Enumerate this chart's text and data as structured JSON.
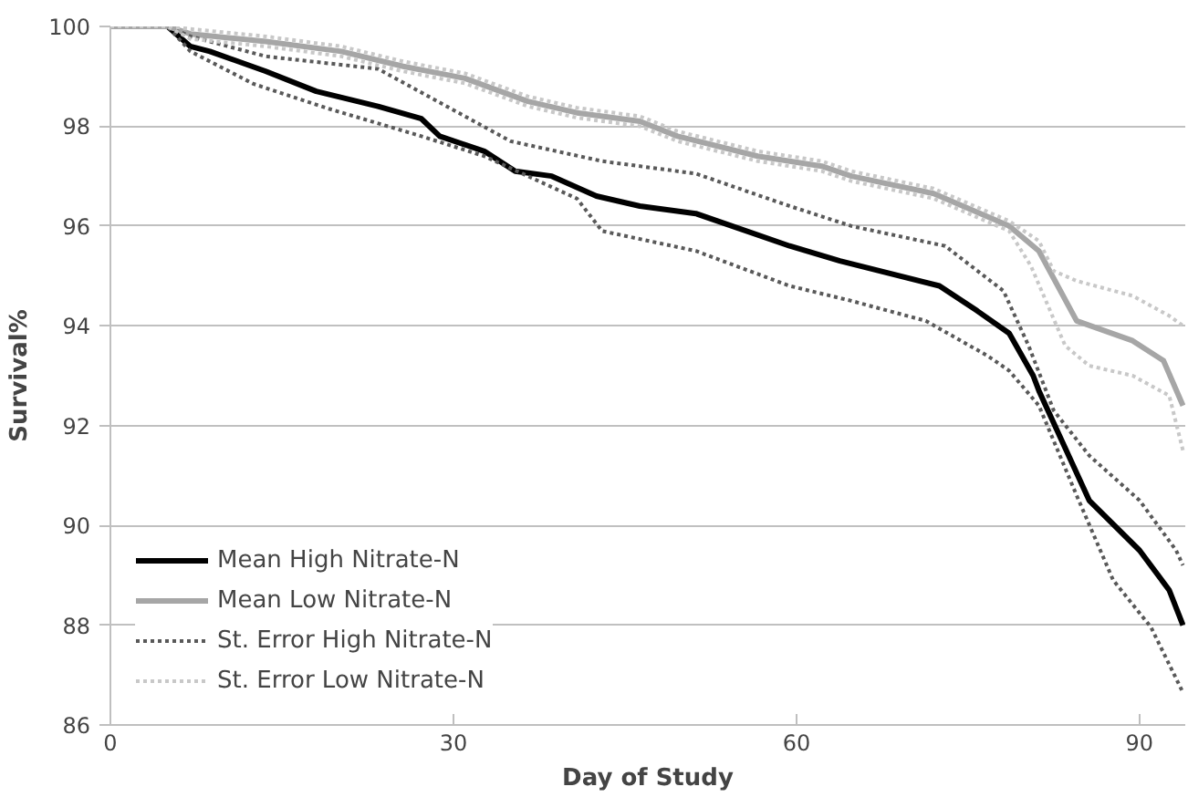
{
  "chart_data": {
    "type": "line",
    "xlabel": "Day of Study",
    "ylabel": "Survival%",
    "xlim": [
      0,
      94
    ],
    "ylim": [
      86,
      100
    ],
    "xticks": [
      0,
      30,
      60,
      90
    ],
    "yticks": [
      86,
      88,
      90,
      92,
      94,
      96,
      98,
      100
    ],
    "grid": "y",
    "legend": "bottom left",
    "marker": "none",
    "series": [
      {
        "name": "Mean High Nitrate-N",
        "color": "#000000",
        "line_style": "solid",
        "x": [
          0,
          5,
          7,
          8.7,
          13.6,
          18,
          23.4,
          27.2,
          28.8,
          32.7,
          35.4,
          38.6,
          42.5,
          46.3,
          51.2,
          59.4,
          63.8,
          72.5,
          75.8,
          78.6,
          80.7,
          81.2,
          85.6,
          90,
          92.6,
          93.8
        ],
        "values": [
          100,
          100,
          99.6,
          99.5,
          99.1,
          98.7,
          98.4,
          98.15,
          97.8,
          97.5,
          97.1,
          97.0,
          96.6,
          96.4,
          96.25,
          95.6,
          95.3,
          94.8,
          94.3,
          93.85,
          93.0,
          92.7,
          90.5,
          89.5,
          88.7,
          88.0
        ]
      },
      {
        "name": "Mean Low Nitrate-N",
        "color": "#a6a6a6",
        "line_style": "solid",
        "x": [
          0,
          5,
          7,
          13.6,
          20.2,
          25.6,
          31,
          36.5,
          40.8,
          46.3,
          49.6,
          56.6,
          62.2,
          64.8,
          72,
          78.6,
          81.2,
          84.5,
          89.4,
          92.1,
          93.8
        ],
        "values": [
          100,
          100,
          99.85,
          99.7,
          99.5,
          99.2,
          98.96,
          98.5,
          98.27,
          98.1,
          97.8,
          97.4,
          97.2,
          97.0,
          96.65,
          96.0,
          95.5,
          94.1,
          93.7,
          93.3,
          92.4
        ]
      },
      {
        "name": "St. Error High Nitrate-N",
        "color": "#595959",
        "line_style": "dotted",
        "x": [
          0,
          5,
          7,
          13.6,
          23.4,
          35,
          43,
          51.2,
          59.4,
          64.8,
          73,
          78.1,
          80.3,
          82.5,
          85.6,
          90,
          93.2,
          93.8
        ],
        "values": [
          100,
          100,
          99.8,
          99.4,
          99.15,
          97.7,
          97.3,
          97.05,
          96.4,
          96.0,
          95.6,
          94.7,
          93.6,
          92.3,
          91.4,
          90.5,
          89.5,
          89.2
        ]
      },
      {
        "color": "#595959",
        "line_style": "dotted",
        "x": [
          0,
          5,
          7,
          12.5,
          19.1,
          27.2,
          32.7,
          40.8,
          43,
          51.2,
          59.4,
          64.8,
          71.3,
          76.7,
          78.6,
          81.2,
          84.5,
          87.7,
          91,
          93.8
        ],
        "values": [
          100,
          100,
          99.5,
          98.85,
          98.35,
          97.8,
          97.4,
          96.55,
          95.9,
          95.5,
          94.8,
          94.5,
          94.1,
          93.4,
          93.1,
          92.4,
          90.6,
          88.9,
          87.96,
          86.65
        ]
      },
      {
        "name": "St. Error Low Nitrate-N",
        "color": "#c8c8c8",
        "line_style": "dotted",
        "x": [
          0,
          5,
          7,
          13.6,
          20.2,
          25.6,
          31,
          36.5,
          40.8,
          46.3,
          49.6,
          56.6,
          62.2,
          64.8,
          72,
          78.6,
          81.2,
          82.5,
          84.5,
          89.4,
          92.6,
          93.8
        ],
        "values": [
          100,
          100,
          99.95,
          99.8,
          99.6,
          99.3,
          99.06,
          98.6,
          98.37,
          98.2,
          97.9,
          97.5,
          97.3,
          97.1,
          96.75,
          96.1,
          95.7,
          95.1,
          94.9,
          94.6,
          94.2,
          94.0
        ]
      },
      {
        "color": "#c8c8c8",
        "line_style": "dotted",
        "x": [
          0,
          5,
          7,
          13.6,
          20.2,
          25.6,
          31,
          36.5,
          40.8,
          46.3,
          49.6,
          56.6,
          62.2,
          64.8,
          72,
          78.6,
          80.5,
          83.5,
          85.6,
          89.4,
          92.6,
          93.8
        ],
        "values": [
          100,
          100,
          99.75,
          99.6,
          99.4,
          99.1,
          98.86,
          98.4,
          98.17,
          98.0,
          97.7,
          97.3,
          97.1,
          96.9,
          96.55,
          95.9,
          95.2,
          93.6,
          93.2,
          93.0,
          92.6,
          91.5
        ]
      }
    ]
  }
}
